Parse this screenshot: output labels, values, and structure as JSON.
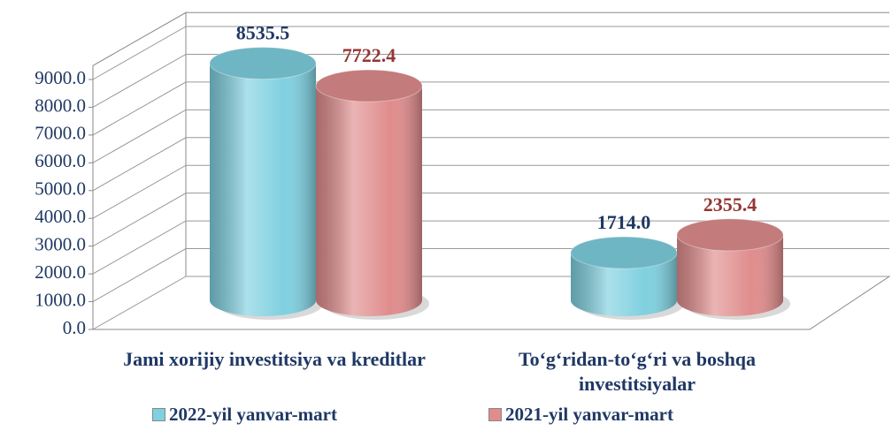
{
  "chart_data": {
    "type": "cylinder_bar",
    "categories": [
      "Jami xorijiy investitsiya va kreditlar",
      "To‘g‘ridan-to‘g‘ri va boshqa investitsiyalar"
    ],
    "series": [
      {
        "name": "2022-yil yanvar-mart",
        "color": "#7fd0e0",
        "values": [
          8535.5,
          1714.0
        ],
        "value_labels": [
          "8535.5",
          "1714.0"
        ]
      },
      {
        "name": "2021-yil yanvar-mart",
        "color": "#e08c8c",
        "values": [
          7722.4,
          2355.4
        ],
        "value_labels": [
          "7722.4",
          "2355.4"
        ]
      }
    ],
    "ylim": [
      0,
      9500
    ],
    "yticks": [
      {
        "value": 0,
        "label": "0.0"
      },
      {
        "value": 1000,
        "label": "1000.0"
      },
      {
        "value": 2000,
        "label": "2000.0"
      },
      {
        "value": 3000,
        "label": "3000.0"
      },
      {
        "value": 4000,
        "label": "4000.0"
      },
      {
        "value": 5000,
        "label": "5000.0"
      },
      {
        "value": 6000,
        "label": "6000.0"
      },
      {
        "value": 7000,
        "label": "7000.0"
      },
      {
        "value": 8000,
        "label": "8000.0"
      },
      {
        "value": 9000,
        "label": "9000.0"
      }
    ],
    "grid": true
  }
}
